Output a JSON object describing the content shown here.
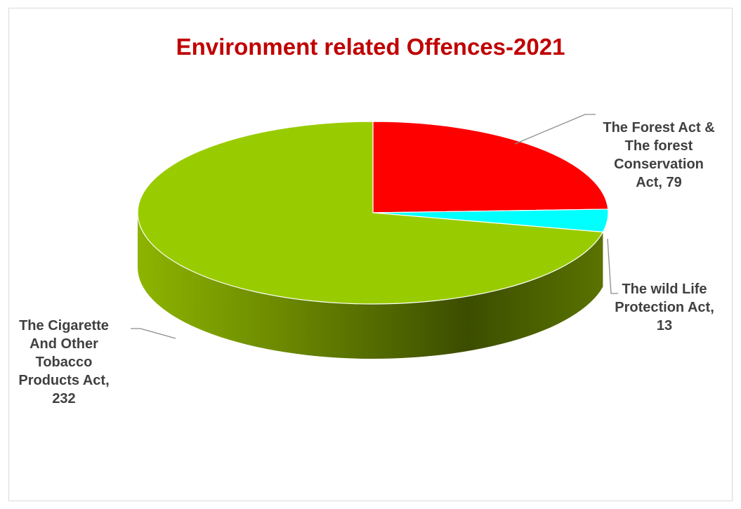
{
  "chart_data": {
    "type": "pie",
    "title": "Environment related Offences-2021",
    "title_color": "#c00000",
    "series": [
      {
        "name": "",
        "categories": [
          "The Forest Act & The forest Conservation Act",
          "The wild Life Protection Act",
          "The Cigarette And Other Tobacco Products Act"
        ],
        "values": [
          79,
          13,
          232
        ],
        "colors": [
          "#ff0000",
          "#00ffff",
          "#99cc00"
        ],
        "data_labels": [
          [
            "The Forest Act &",
            "The forest",
            "Conservation",
            "Act, 79"
          ],
          [
            "The wild Life",
            "Protection Act,",
            "13"
          ],
          [
            "The Cigarette",
            "And Other",
            "Tobacco",
            "Products Act,",
            "232"
          ]
        ]
      }
    ],
    "style": "3d-pie",
    "legend": "none",
    "grid": false
  }
}
